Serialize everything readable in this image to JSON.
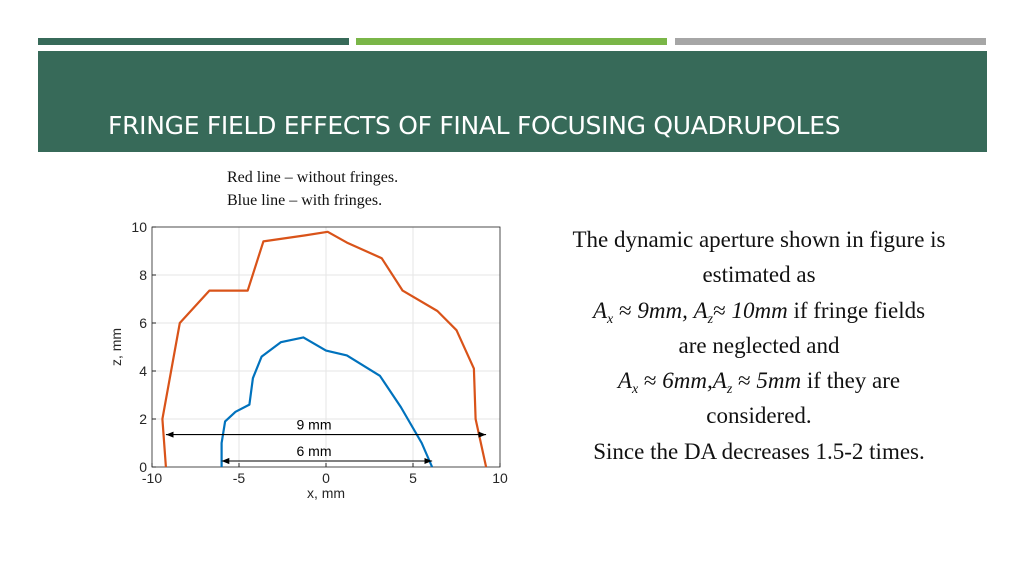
{
  "colors": {
    "title_band": "#376a59",
    "bar_dark": "#376a59",
    "bar_green": "#7ab648",
    "bar_gray": "#a6a6a6",
    "red_series": "#d95319",
    "blue_series": "#0072bd"
  },
  "slide": {
    "title": "FRINGE FIELD EFFECTS OF FINAL FOCUSING QUADRUPOLES",
    "legend_note": {
      "red": "Red line – without fringes.",
      "blue": "Blue line – with fringes."
    }
  },
  "description": {
    "line1": "The dynamic aperture shown in figure is",
    "line2": "estimated as",
    "line3": {
      "a_symbol": "A",
      "x_sub": "x",
      "z_sub": "z",
      "approx": "≈",
      "ax_value": "9mm,",
      "az_value": "10mm",
      "tail": "if fringe fields"
    },
    "line4": "are neglected and",
    "line5": {
      "ax_value": "6mm,",
      "az_value": "5mm",
      "tail": "if they are"
    },
    "line6": "considered.",
    "line7": "Since the DA decreases 1.5-2 times."
  },
  "chart_data": {
    "type": "line",
    "xlabel": "x, mm",
    "ylabel": "z, mm",
    "xlim": [
      -10,
      10
    ],
    "ylim": [
      0,
      10
    ],
    "xticks": [
      -10,
      -5,
      0,
      5,
      10
    ],
    "yticks": [
      0,
      2,
      4,
      6,
      8,
      10
    ],
    "grid": true,
    "series": [
      {
        "name": "without fringes",
        "color": "#d95319",
        "x": [
          -9.2,
          -9.4,
          -8.9,
          -8.4,
          -6.7,
          -4.5,
          -3.6,
          -1.2,
          0.1,
          1.2,
          3.2,
          4.4,
          6.4,
          7.5,
          8.5,
          8.6,
          9.2
        ],
        "y": [
          0,
          2.0,
          4.0,
          6.0,
          7.35,
          7.35,
          9.4,
          9.65,
          9.8,
          9.35,
          8.7,
          7.35,
          6.5,
          5.7,
          4.1,
          2.0,
          0
        ]
      },
      {
        "name": "with fringes",
        "color": "#0072bd",
        "x": [
          -6.0,
          -6.0,
          -5.8,
          -5.2,
          -4.4,
          -4.2,
          -3.7,
          -2.6,
          -1.3,
          0.0,
          1.2,
          3.1,
          4.3,
          5.5,
          5.8,
          6.1
        ],
        "y": [
          0,
          1.0,
          1.9,
          2.3,
          2.6,
          3.7,
          4.6,
          5.2,
          5.4,
          4.85,
          4.65,
          3.8,
          2.5,
          1.0,
          0.5,
          0
        ]
      }
    ],
    "annotations": [
      {
        "label": "9 mm",
        "x_from": -9.2,
        "x_to": 9.2,
        "y": 1.35
      },
      {
        "label": "6 mm",
        "x_from": -6.0,
        "x_to": 6.1,
        "y": 0.25
      }
    ]
  }
}
